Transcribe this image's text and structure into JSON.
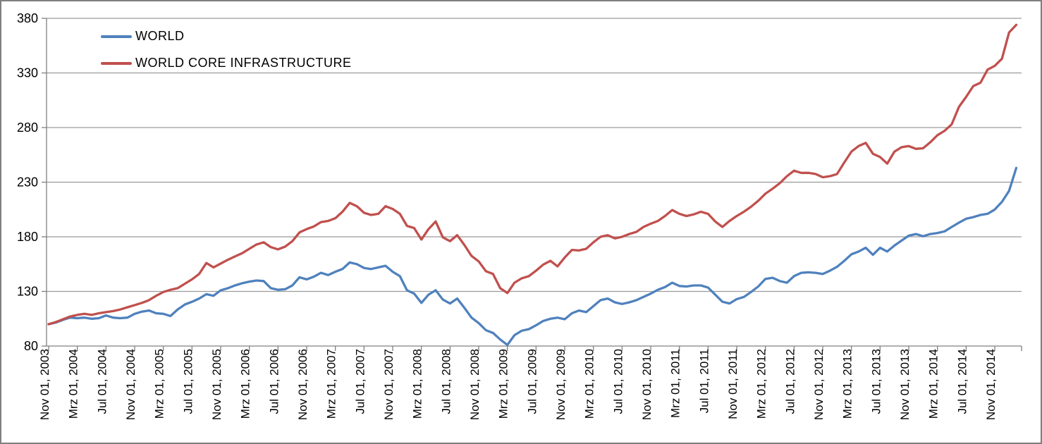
{
  "window": {
    "background_color": "#ffffff",
    "border_color": "#7f7f7f"
  },
  "legend": {
    "position": "top-left-inside",
    "items": [
      {
        "label": "WORLD",
        "color": "#4F81BD"
      },
      {
        "label": "WORLD CORE INFRASTRUCTURE",
        "color": "#C0504D"
      }
    ]
  },
  "chart_data": {
    "type": "line",
    "title": "",
    "xlabel": "",
    "ylabel": "",
    "x_frequency": "monthly",
    "x_start_label": "Nov 01, 2003",
    "x_end_label": "Feb 01, 2015",
    "ylim": [
      80,
      380
    ],
    "y_ticks": [
      80,
      130,
      180,
      230,
      280,
      330,
      380
    ],
    "grid": "horizontal",
    "gridline_color": "#9b9b9b",
    "axis_color": "#808080",
    "tick_label_color": "#000000",
    "x_tick_every_n_months": 4,
    "x_tick_labels": [
      "Nov 01, 2003",
      "Mrz 01, 2004",
      "Jul 01, 2004",
      "Nov 01, 2004",
      "Mrz 01, 2005",
      "Jul 01, 2005",
      "Nov 01, 2005",
      "Mrz 01, 2006",
      "Jul 01, 2006",
      "Nov 01, 2006",
      "Mrz 01, 2007",
      "Jul 01, 2007",
      "Nov 01, 2007",
      "Mrz 01, 2008",
      "Jul 01, 2008",
      "Nov 01, 2008",
      "Mrz 01, 2009",
      "Jul 01, 2009",
      "Nov 01, 2009",
      "Mrz 01, 2010",
      "Jul 01, 2010",
      "Nov 01, 2010",
      "Mrz 01, 2011",
      "Jul 01, 2011",
      "Nov 01, 2011",
      "Mrz 01, 2012",
      "Jul 01, 2012",
      "Nov 01, 2012",
      "Mrz 01, 2013",
      "Jul 01, 2013",
      "Nov 01, 2013",
      "Mrz 01, 2014",
      "Jul 01, 2014",
      "Nov 01, 2014"
    ],
    "series": [
      {
        "name": "WORLD",
        "color": "#4F81BD",
        "values": [
          100,
          101.5,
          104,
          106,
          105.5,
          106,
          105,
          105.5,
          108,
          106,
          105.5,
          106,
          109.5,
          111.5,
          112.5,
          110,
          109.5,
          107.5,
          113.5,
          118,
          120.5,
          123.5,
          127.5,
          126,
          131,
          133,
          135.5,
          137.5,
          139,
          140,
          139.5,
          133,
          131.5,
          132,
          135.5,
          143,
          141,
          143.5,
          147,
          145,
          148,
          150.5,
          156.5,
          155,
          151.5,
          150.5,
          152,
          153.5,
          148,
          144,
          131,
          128,
          119.5,
          127,
          131,
          122.5,
          119,
          123.5,
          115,
          106,
          101,
          94.5,
          92,
          86,
          81,
          90,
          94,
          95.5,
          99,
          103,
          105,
          106,
          104.5,
          110,
          112.5,
          111,
          116.5,
          122,
          123.5,
          120,
          118.5,
          120,
          122,
          125,
          128,
          131.5,
          134,
          138,
          135,
          134.5,
          135.5,
          135.5,
          133.5,
          127,
          120.5,
          119,
          123,
          125,
          129.5,
          134.5,
          141.5,
          142.5,
          139.5,
          138,
          144,
          147,
          147.5,
          147,
          146,
          149,
          152.5,
          158,
          164,
          166.5,
          170,
          163.5,
          170,
          166.5,
          172,
          176.5,
          181,
          182.5,
          180.5,
          182.5,
          183.5,
          185,
          189,
          193,
          196.5,
          198,
          200,
          201,
          205,
          212,
          222,
          243
        ]
      },
      {
        "name": "WORLD CORE INFRASTRUCTURE",
        "color": "#C0504D",
        "values": [
          100,
          102,
          104.5,
          107,
          108.5,
          109.5,
          108.5,
          110,
          111,
          112,
          113.5,
          115.5,
          117.5,
          119.5,
          122,
          126,
          129.5,
          131.5,
          133,
          137,
          141,
          146,
          156,
          152,
          155.5,
          159,
          162,
          165,
          169,
          173,
          175,
          170.5,
          168.5,
          171,
          176,
          184,
          187,
          189.5,
          193.5,
          194.5,
          197,
          203,
          211,
          208,
          202,
          200,
          201,
          208,
          205.5,
          201,
          190,
          188,
          177.5,
          187,
          194,
          179.5,
          176,
          181.5,
          172.5,
          162.5,
          157.5,
          148.5,
          146,
          133,
          128.5,
          138,
          142,
          144,
          149,
          154.5,
          158,
          153,
          161,
          168,
          167.5,
          169,
          175,
          180,
          181.5,
          178.5,
          180,
          182.5,
          184.5,
          189,
          192,
          194.5,
          199,
          204.5,
          201,
          199,
          200.5,
          203,
          201,
          194,
          189,
          194.5,
          199,
          203,
          207.5,
          213,
          219.5,
          224,
          229,
          235.5,
          240.5,
          238.5,
          238.5,
          237.5,
          234.5,
          235.5,
          237.5,
          248,
          258,
          263,
          266,
          256,
          253,
          247,
          258,
          262,
          263,
          260.5,
          261,
          266.5,
          273,
          277,
          283,
          299,
          308,
          318,
          321,
          333,
          336.5,
          343,
          367,
          374
        ]
      }
    ]
  }
}
